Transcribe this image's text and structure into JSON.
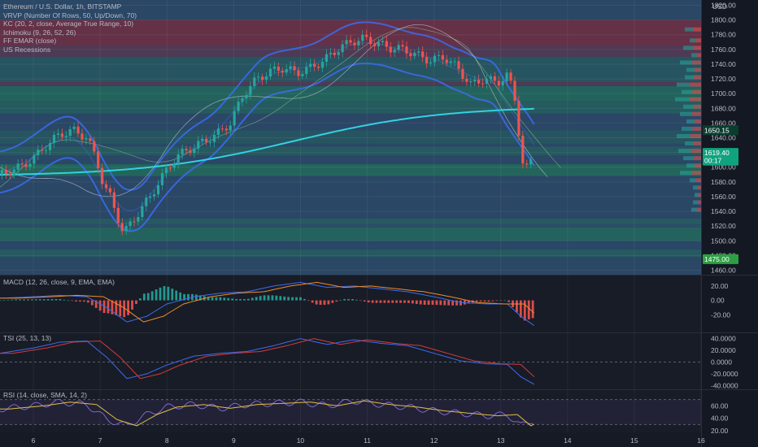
{
  "header": {
    "symbol_line": "Ethereum / U.S. Dollar, 1h, BITSTAMP",
    "indicators": [
      "VRVP (Number Of Rows, 50, Up/Down, 70)",
      "KC (20, 2, close, Average True Range, 10)",
      "Ichimoku (9, 26, 52, 26)",
      "FF EMAR (close)",
      "US Recessions"
    ]
  },
  "price_axis": {
    "currency": "USD",
    "ticks": [
      "1820.00",
      "1800.00",
      "1780.00",
      "1760.00",
      "1740.00",
      "1720.00",
      "1700.00",
      "1680.00",
      "1660.00",
      "1640.00",
      "1620.00",
      "1600.00",
      "1580.00",
      "1560.00",
      "1540.00",
      "1520.00",
      "1500.00",
      "1480.00",
      "1460.00"
    ],
    "tags": [
      {
        "label": "1650.15",
        "value": 1650.15,
        "color": "#0b3d2e"
      },
      {
        "label": "1619.40",
        "value": 1619.4,
        "color": "#10a37f"
      },
      {
        "label": "00:17",
        "value": 1609,
        "color": "#10a37f"
      },
      {
        "label": "1475.00",
        "value": 1475.0,
        "color": "#2e9e44"
      }
    ]
  },
  "time_axis": {
    "labels": [
      "6",
      "7",
      "8",
      "9",
      "10",
      "11",
      "12",
      "13",
      "14",
      "15",
      "16"
    ]
  },
  "panes": {
    "macd": {
      "title": "MACD (12, 26, close, 9, EMA, EMA)",
      "ticks": [
        "20.00",
        "0.00",
        "-20.00"
      ]
    },
    "tsi": {
      "title": "TSI (25, 13, 13)",
      "ticks": [
        "40.0000",
        "20.0000",
        "0.0000",
        "-20.0000",
        "-40.0000"
      ]
    },
    "rsi": {
      "title": "RSI (14, close, SMA, 14, 2)",
      "ticks": [
        "60.00",
        "40.00",
        "20.00"
      ]
    }
  },
  "colors": {
    "up": "#26a69a",
    "down": "#ef5350",
    "zone_green": "#1f7a55",
    "zone_red": "#7a2a3d",
    "keltner": "#3b6cf0",
    "ema": "#33d1e0",
    "macd_line": "#3b6cf0",
    "signal_line": "#f08c2a",
    "tsi_line": "#3b6cf0",
    "tsi_signal": "#d63a3a",
    "rsi_line": "#8a6bd8",
    "rsi_ma": "#e0c040"
  },
  "chart_data": [
    {
      "type": "line",
      "name": "price",
      "x": [
        5.5,
        5.8,
        6.0,
        6.2,
        6.4,
        6.6,
        6.8,
        6.95,
        7.05,
        7.15,
        7.35,
        7.55,
        7.75,
        7.95,
        8.15,
        8.35,
        8.55,
        8.75,
        8.95,
        9.15,
        9.35,
        9.55,
        9.75,
        9.95,
        10.15,
        10.35,
        10.55,
        10.75,
        10.95,
        11.15,
        11.35,
        11.55,
        11.75,
        11.95,
        12.15,
        12.35,
        12.55,
        12.75,
        12.95,
        13.1,
        13.2,
        13.35,
        13.5
      ],
      "y": [
        1590,
        1600,
        1612,
        1630,
        1645,
        1650,
        1640,
        1610,
        1575,
        1560,
        1510,
        1535,
        1560,
        1590,
        1615,
        1625,
        1635,
        1645,
        1660,
        1700,
        1720,
        1730,
        1735,
        1728,
        1735,
        1745,
        1760,
        1770,
        1775,
        1768,
        1762,
        1760,
        1752,
        1745,
        1750,
        1735,
        1712,
        1720,
        1715,
        1725,
        1700,
        1590,
        1619
      ],
      "xlim": [
        5.5,
        16
      ],
      "ylim": [
        1455,
        1825
      ]
    },
    {
      "type": "line",
      "name": "macd",
      "x": [
        5.5,
        6.0,
        6.4,
        6.8,
        7.1,
        7.4,
        7.7,
        8.0,
        8.4,
        8.8,
        9.2,
        9.6,
        10.0,
        10.4,
        10.8,
        11.2,
        11.6,
        12.0,
        12.4,
        12.8,
        13.1,
        13.3,
        13.5
      ],
      "y": [
        3,
        5,
        7,
        5,
        -10,
        -30,
        -22,
        -5,
        5,
        10,
        12,
        20,
        25,
        18,
        20,
        16,
        12,
        5,
        -3,
        -5,
        -5,
        -22,
        -35
      ],
      "ylim": [
        -40,
        30
      ]
    },
    {
      "type": "line",
      "name": "tsi",
      "x": [
        5.5,
        6.0,
        6.4,
        6.8,
        7.1,
        7.4,
        7.7,
        8.0,
        8.4,
        8.8,
        9.2,
        9.6,
        10.0,
        10.4,
        10.8,
        11.2,
        11.6,
        12.0,
        12.4,
        12.8,
        13.1,
        13.3,
        13.5
      ],
      "y": [
        15,
        24,
        34,
        36,
        8,
        -28,
        -20,
        -5,
        10,
        15,
        18,
        28,
        40,
        30,
        38,
        32,
        28,
        15,
        2,
        -3,
        -4,
        -25,
        -38
      ],
      "ylim": [
        -45,
        45
      ]
    },
    {
      "type": "line",
      "name": "rsi",
      "x": [
        5.5,
        6.0,
        6.4,
        6.8,
        7.1,
        7.4,
        7.7,
        8.0,
        8.4,
        8.8,
        9.2,
        9.6,
        10.0,
        10.4,
        10.8,
        11.2,
        11.6,
        12.0,
        12.4,
        12.8,
        13.1,
        13.3,
        13.5
      ],
      "y": [
        55,
        60,
        66,
        62,
        38,
        28,
        46,
        58,
        62,
        56,
        62,
        64,
        66,
        60,
        68,
        62,
        58,
        52,
        48,
        44,
        46,
        28,
        38
      ],
      "ylim": [
        20,
        80
      ]
    }
  ]
}
